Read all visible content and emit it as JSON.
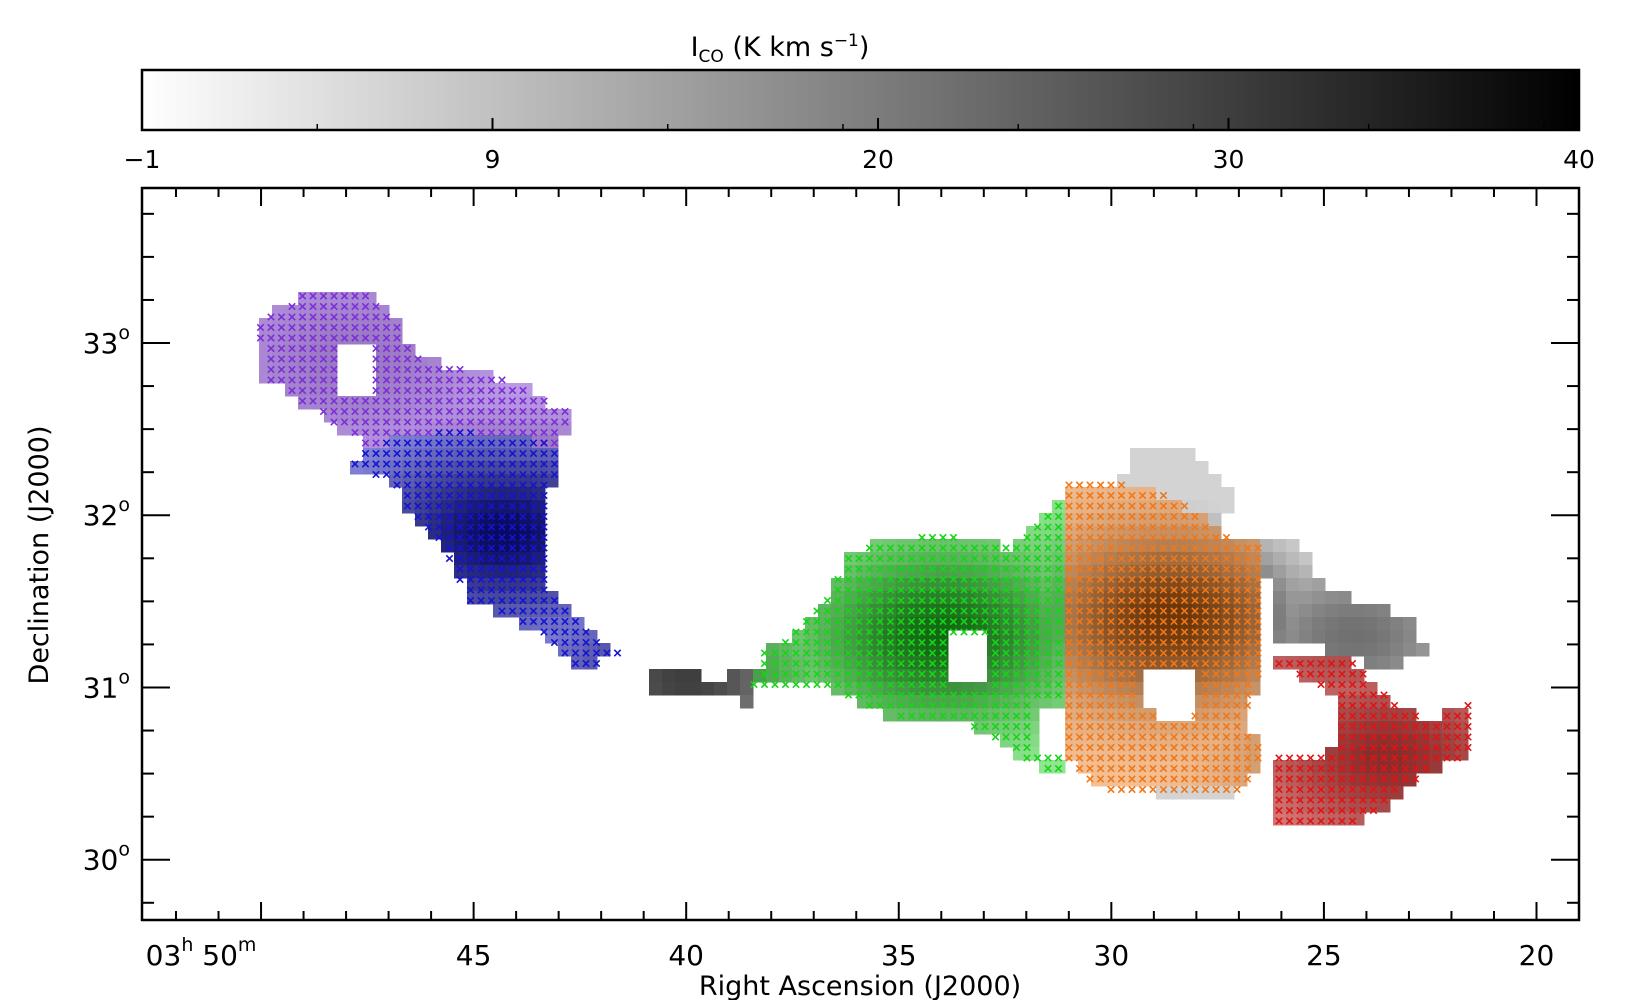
{
  "colorbar": {
    "title_main": "I",
    "title_sub": "CO",
    "title_units": " (K km s",
    "title_exp": "−1",
    "title_close": ")",
    "range": [
      -1,
      40
    ],
    "ticks": [
      "−1",
      "9",
      "20",
      "30",
      "40"
    ],
    "tick_values": [
      -1,
      9,
      20,
      30,
      40
    ],
    "colormap": "grayscale (white = low, black = high)"
  },
  "chart_data": {
    "type": "heatmap",
    "xlabel": "Right Ascension (J2000)",
    "ylabel": "Declination (J2000)",
    "x_tick_labels": [
      {
        "value_min": 50,
        "label": "03",
        "sup": "h",
        "label2": " 50",
        "sup2": "m"
      },
      {
        "value_min": 45,
        "label": "45"
      },
      {
        "value_min": 40,
        "label": "40"
      },
      {
        "value_min": 35,
        "label": "35"
      },
      {
        "value_min": 30,
        "label": "30"
      },
      {
        "value_min": 25,
        "label": "25"
      },
      {
        "value_min": 20,
        "label": "20"
      }
    ],
    "y_tick_labels": [
      {
        "value_deg": 33,
        "label": "33",
        "sup": "o"
      },
      {
        "value_deg": 32,
        "label": "32",
        "sup": "o"
      },
      {
        "value_deg": 31,
        "label": "31",
        "sup": "o"
      },
      {
        "value_deg": 30,
        "label": "30",
        "sup": "o"
      }
    ],
    "xlim_min": [
      52.8,
      19.0
    ],
    "ylim_deg": [
      29.65,
      33.9
    ],
    "grid": false,
    "regions": [
      {
        "color": "#7b2fd6",
        "polygon_ra_min_dec_deg": [
          [
            48.9,
            33.3
          ],
          [
            47.4,
            33.3
          ],
          [
            46.2,
            32.9
          ],
          [
            44.3,
            32.8
          ],
          [
            42.8,
            32.6
          ],
          [
            42.9,
            32.4
          ],
          [
            45.5,
            32.5
          ],
          [
            47.5,
            32.4
          ],
          [
            49.9,
            32.8
          ],
          [
            50.1,
            33.1
          ]
        ]
      },
      {
        "color": "#1414d0",
        "polygon_ra_min_dec_deg": [
          [
            47.5,
            32.4
          ],
          [
            45.5,
            32.5
          ],
          [
            42.8,
            32.4
          ],
          [
            43.3,
            32.1
          ],
          [
            43.2,
            31.6
          ],
          [
            42.6,
            31.4
          ],
          [
            41.6,
            31.2
          ],
          [
            42.4,
            31.1
          ],
          [
            44.0,
            31.4
          ],
          [
            45.1,
            31.5
          ],
          [
            45.7,
            31.8
          ],
          [
            46.1,
            31.9
          ],
          [
            47.0,
            32.2
          ],
          [
            48.0,
            32.3
          ]
        ]
      },
      {
        "color": "#18d418",
        "polygon_ra_min_dec_deg": [
          [
            31.1,
            32.1
          ],
          [
            32.3,
            31.8
          ],
          [
            34.0,
            31.9
          ],
          [
            36.1,
            31.8
          ],
          [
            36.7,
            31.5
          ],
          [
            37.6,
            31.3
          ],
          [
            38.3,
            31.2
          ],
          [
            38.2,
            31.1
          ],
          [
            38.7,
            31.0
          ],
          [
            36.7,
            31.0
          ],
          [
            35.9,
            30.9
          ],
          [
            34.8,
            30.8
          ],
          [
            33.4,
            30.8
          ],
          [
            31.5,
            30.5
          ],
          [
            31.1,
            30.5
          ]
        ]
      },
      {
        "color": "#f07818",
        "polygon_ra_min_dec_deg": [
          [
            31.1,
            32.2
          ],
          [
            30.1,
            32.2
          ],
          [
            28.5,
            32.1
          ],
          [
            27.4,
            31.9
          ],
          [
            26.4,
            31.8
          ],
          [
            26.5,
            31.1
          ],
          [
            26.9,
            30.8
          ],
          [
            26.4,
            30.6
          ],
          [
            26.9,
            30.4
          ],
          [
            27.5,
            30.4
          ],
          [
            28.9,
            30.4
          ],
          [
            30.2,
            30.4
          ],
          [
            31.1,
            30.6
          ]
        ]
      },
      {
        "color": "#e01414",
        "polygon_ra_min_dec_deg": [
          [
            26.2,
            31.2
          ],
          [
            24.4,
            31.2
          ],
          [
            23.8,
            31.0
          ],
          [
            22.6,
            30.8
          ],
          [
            21.6,
            30.9
          ],
          [
            21.6,
            30.6
          ],
          [
            22.7,
            30.5
          ],
          [
            23.6,
            30.3
          ],
          [
            24.4,
            30.2
          ],
          [
            26.2,
            30.2
          ],
          [
            26.2,
            30.6
          ],
          [
            24.9,
            30.6
          ],
          [
            24.9,
            31.0
          ],
          [
            26.2,
            31.0
          ]
        ]
      }
    ],
    "intensity_peaks": [
      {
        "ra_min": 44.3,
        "dec_deg": 31.9,
        "level": 40
      },
      {
        "ra_min": 28.6,
        "dec_deg": 31.4,
        "level": 40
      },
      {
        "ra_min": 34.0,
        "dec_deg": 31.3,
        "level": 38
      },
      {
        "ra_min": 23.5,
        "dec_deg": 30.6,
        "level": 30
      },
      {
        "ra_min": 47.8,
        "dec_deg": 32.9,
        "level": 12
      },
      {
        "ra_min": 40.0,
        "dec_deg": 31.05,
        "level": 30
      },
      {
        "ra_min": 24.3,
        "dec_deg": 31.3,
        "level": 22
      }
    ]
  }
}
